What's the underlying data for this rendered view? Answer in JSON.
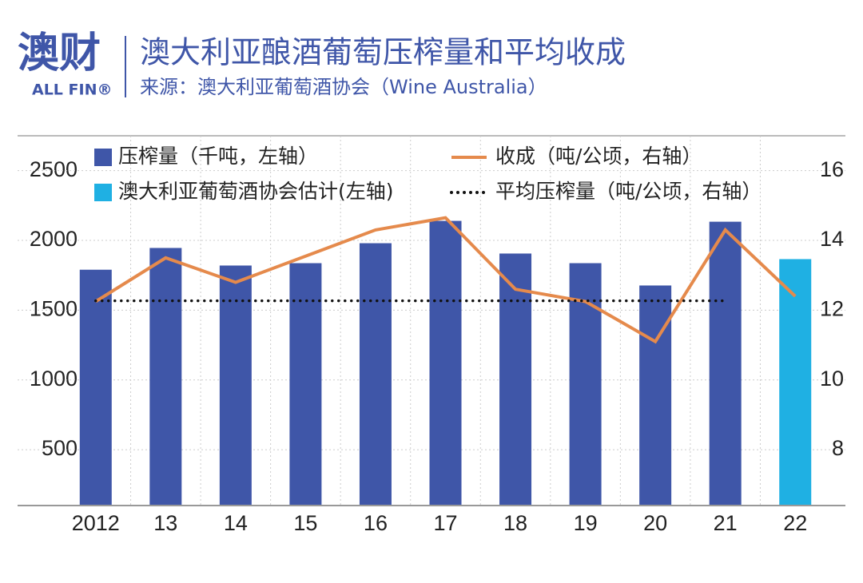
{
  "logo": {
    "name": "澳财",
    "sub": "ALL FIN®"
  },
  "chart_data": {
    "type": "bar",
    "title": "澳大利亚酿酒葡萄压榨量和平均收成",
    "subtitle": "来源：澳大利亚葡萄酒协会（Wine Australia）",
    "categories": [
      "2012",
      "13",
      "14",
      "15",
      "16",
      "17",
      "18",
      "19",
      "20",
      "21",
      "22"
    ],
    "series": [
      {
        "name": "压榨量（千吨，左轴）",
        "type": "bar",
        "color": "#3f56a8",
        "values": [
          1790,
          1946,
          1820,
          1837,
          1980,
          2140,
          1906,
          1837,
          1677,
          2134,
          null
        ]
      },
      {
        "name": "澳大利亚葡萄酒协会估计(左轴)",
        "type": "bar",
        "color": "#1fb0e3",
        "values": [
          null,
          null,
          null,
          null,
          null,
          null,
          null,
          null,
          null,
          null,
          1866
        ]
      },
      {
        "name": "收成（吨/公顷，右轴）",
        "type": "line",
        "axis": "y2",
        "color": "#e58a4c",
        "values": [
          12.25,
          13.5,
          12.8,
          13.55,
          14.3,
          14.65,
          12.6,
          12.25,
          11.1,
          14.3,
          12.4
        ]
      },
      {
        "name": "平均压榨量（吨/公顷，右轴）",
        "type": "line",
        "style": "dotted",
        "axis": "y2",
        "color": "#111111",
        "values": [
          12.27,
          12.27,
          12.27,
          12.27,
          12.27,
          12.27,
          12.27,
          12.27,
          12.27,
          12.27,
          null
        ]
      }
    ],
    "ylim": [
      100,
      2750
    ],
    "yticks": [
      500,
      1000,
      1500,
      2000,
      2500
    ],
    "y2lim": [
      6.4,
      17
    ],
    "y2ticks": [
      8,
      10,
      12,
      14,
      16
    ],
    "grid": true
  }
}
